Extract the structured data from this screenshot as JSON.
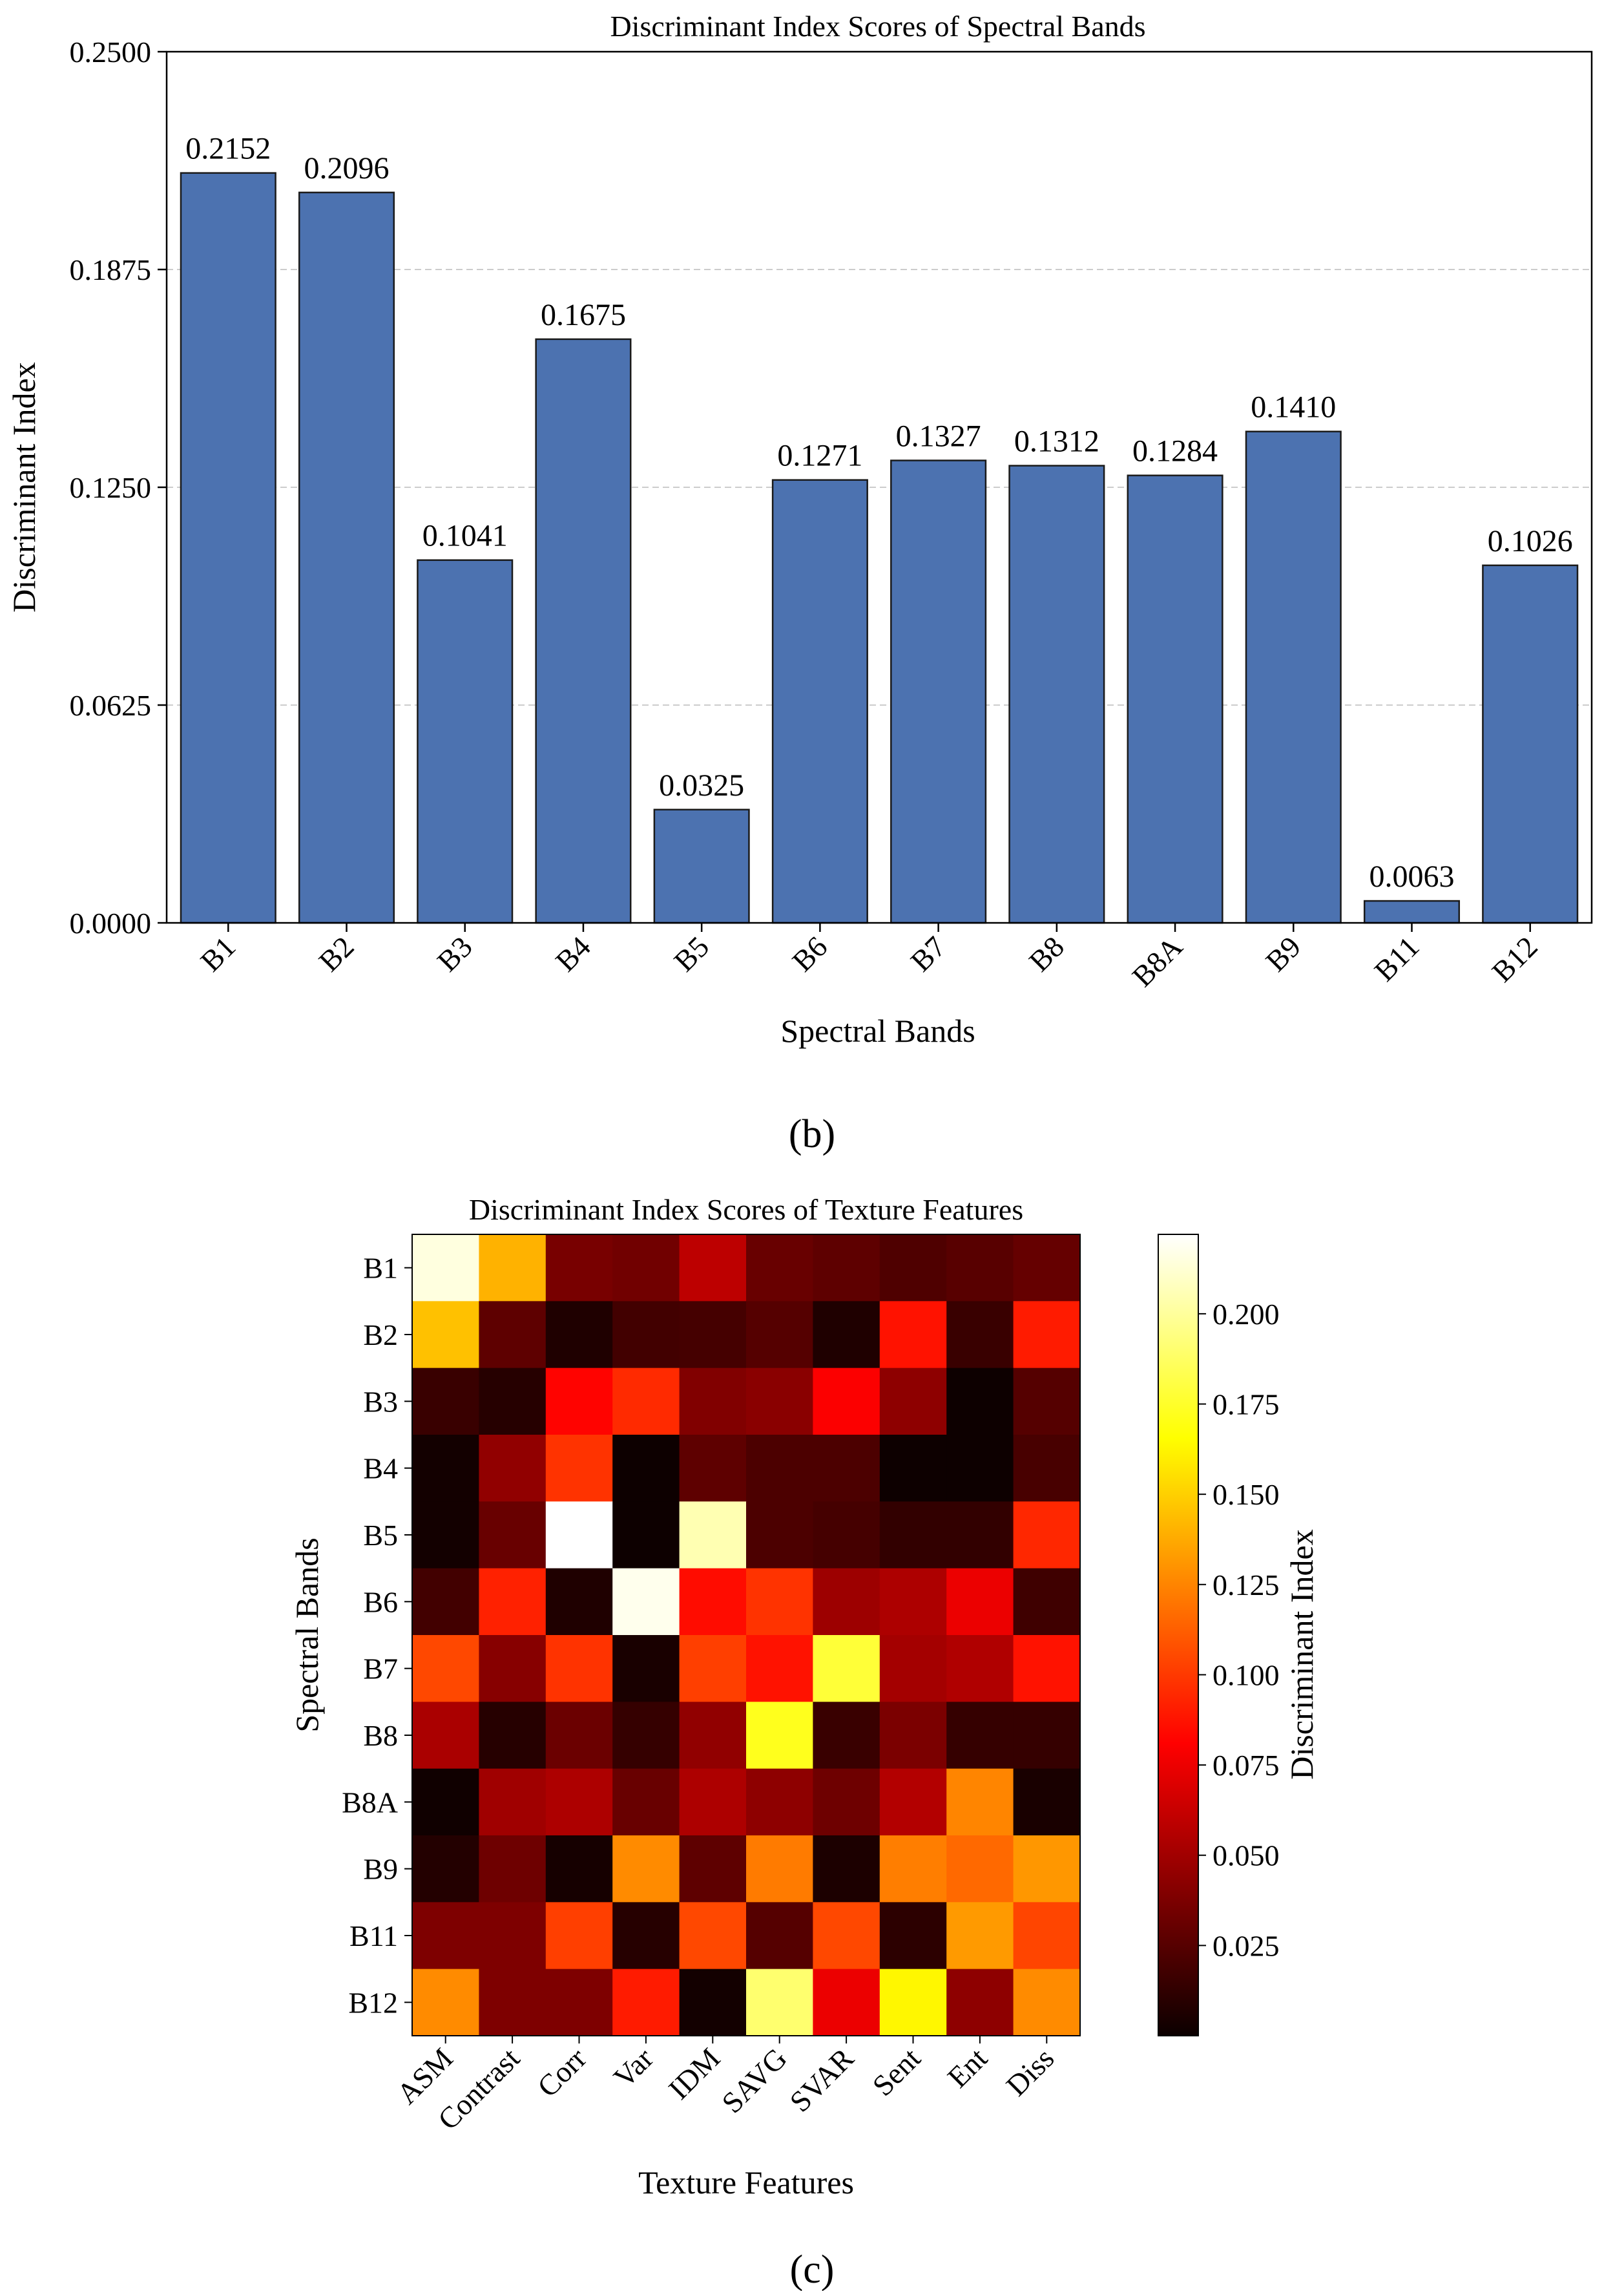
{
  "chart_data": [
    {
      "type": "bar",
      "panel_label": "(b)",
      "title": "Discriminant Index Scores of Spectral Bands",
      "xlabel": "Spectral Bands",
      "ylabel": "Discriminant Index",
      "ylim": [
        0,
        0.25
      ],
      "yticks": [
        "0.0000",
        "0.0625",
        "0.1250",
        "0.1875",
        "0.2500"
      ],
      "grid": true,
      "bar_color": "#4c72b0",
      "categories": [
        "B1",
        "B2",
        "B3",
        "B4",
        "B5",
        "B6",
        "B7",
        "B8",
        "B8A",
        "B9",
        "B11",
        "B12"
      ],
      "values": [
        0.2152,
        0.2096,
        0.1041,
        0.1675,
        0.0325,
        0.1271,
        0.1327,
        0.1312,
        0.1284,
        0.141,
        0.0063,
        0.1026
      ],
      "value_labels": [
        "0.2152",
        "0.2096",
        "0.1041",
        "0.1675",
        "0.0325",
        "0.1271",
        "0.1327",
        "0.1312",
        "0.1284",
        "0.1410",
        "0.0063",
        "0.1026"
      ]
    },
    {
      "type": "heatmap",
      "panel_label": "(c)",
      "title": "Discriminant Index Scores of Texture Features",
      "xlabel": "Texture Features",
      "ylabel": "Spectral Bands",
      "colormap": "hot",
      "colorbar_label": "Discriminant Index",
      "color_range": [
        0.0,
        0.222
      ],
      "colorbar_ticks": [
        "0.025",
        "0.050",
        "0.075",
        "0.100",
        "0.125",
        "0.150",
        "0.175",
        "0.200"
      ],
      "x_categories": [
        "ASM",
        "Contrast",
        "Corr",
        "Var",
        "IDM",
        "SAVG",
        "SVAR",
        "Sent",
        "Ent",
        "Diss"
      ],
      "y_categories": [
        "B1",
        "B2",
        "B3",
        "B4",
        "B5",
        "B6",
        "B7",
        "B8",
        "B8A",
        "B9",
        "B11",
        "B12"
      ],
      "values": [
        [
          0.215,
          0.14,
          0.038,
          0.036,
          0.06,
          0.033,
          0.03,
          0.025,
          0.028,
          0.032
        ],
        [
          0.145,
          0.03,
          0.01,
          0.021,
          0.022,
          0.027,
          0.01,
          0.087,
          0.018,
          0.09
        ],
        [
          0.018,
          0.012,
          0.082,
          0.095,
          0.041,
          0.044,
          0.08,
          0.045,
          0.004,
          0.027
        ],
        [
          0.006,
          0.046,
          0.098,
          0.004,
          0.03,
          0.024,
          0.024,
          0.004,
          0.004,
          0.023
        ],
        [
          0.006,
          0.033,
          0.222,
          0.004,
          0.205,
          0.024,
          0.022,
          0.016,
          0.016,
          0.094
        ],
        [
          0.021,
          0.092,
          0.01,
          0.218,
          0.085,
          0.098,
          0.05,
          0.055,
          0.075,
          0.02
        ],
        [
          0.105,
          0.043,
          0.098,
          0.008,
          0.102,
          0.087,
          0.178,
          0.052,
          0.056,
          0.087
        ],
        [
          0.054,
          0.012,
          0.034,
          0.017,
          0.046,
          0.172,
          0.018,
          0.039,
          0.017,
          0.017
        ],
        [
          0.005,
          0.051,
          0.055,
          0.033,
          0.055,
          0.045,
          0.035,
          0.057,
          0.125,
          0.008
        ],
        [
          0.011,
          0.035,
          0.007,
          0.127,
          0.03,
          0.122,
          0.009,
          0.123,
          0.116,
          0.131
        ],
        [
          0.04,
          0.04,
          0.102,
          0.012,
          0.105,
          0.027,
          0.105,
          0.014,
          0.132,
          0.104
        ],
        [
          0.127,
          0.04,
          0.04,
          0.09,
          0.006,
          0.19,
          0.075,
          0.163,
          0.045,
          0.127
        ]
      ]
    }
  ]
}
